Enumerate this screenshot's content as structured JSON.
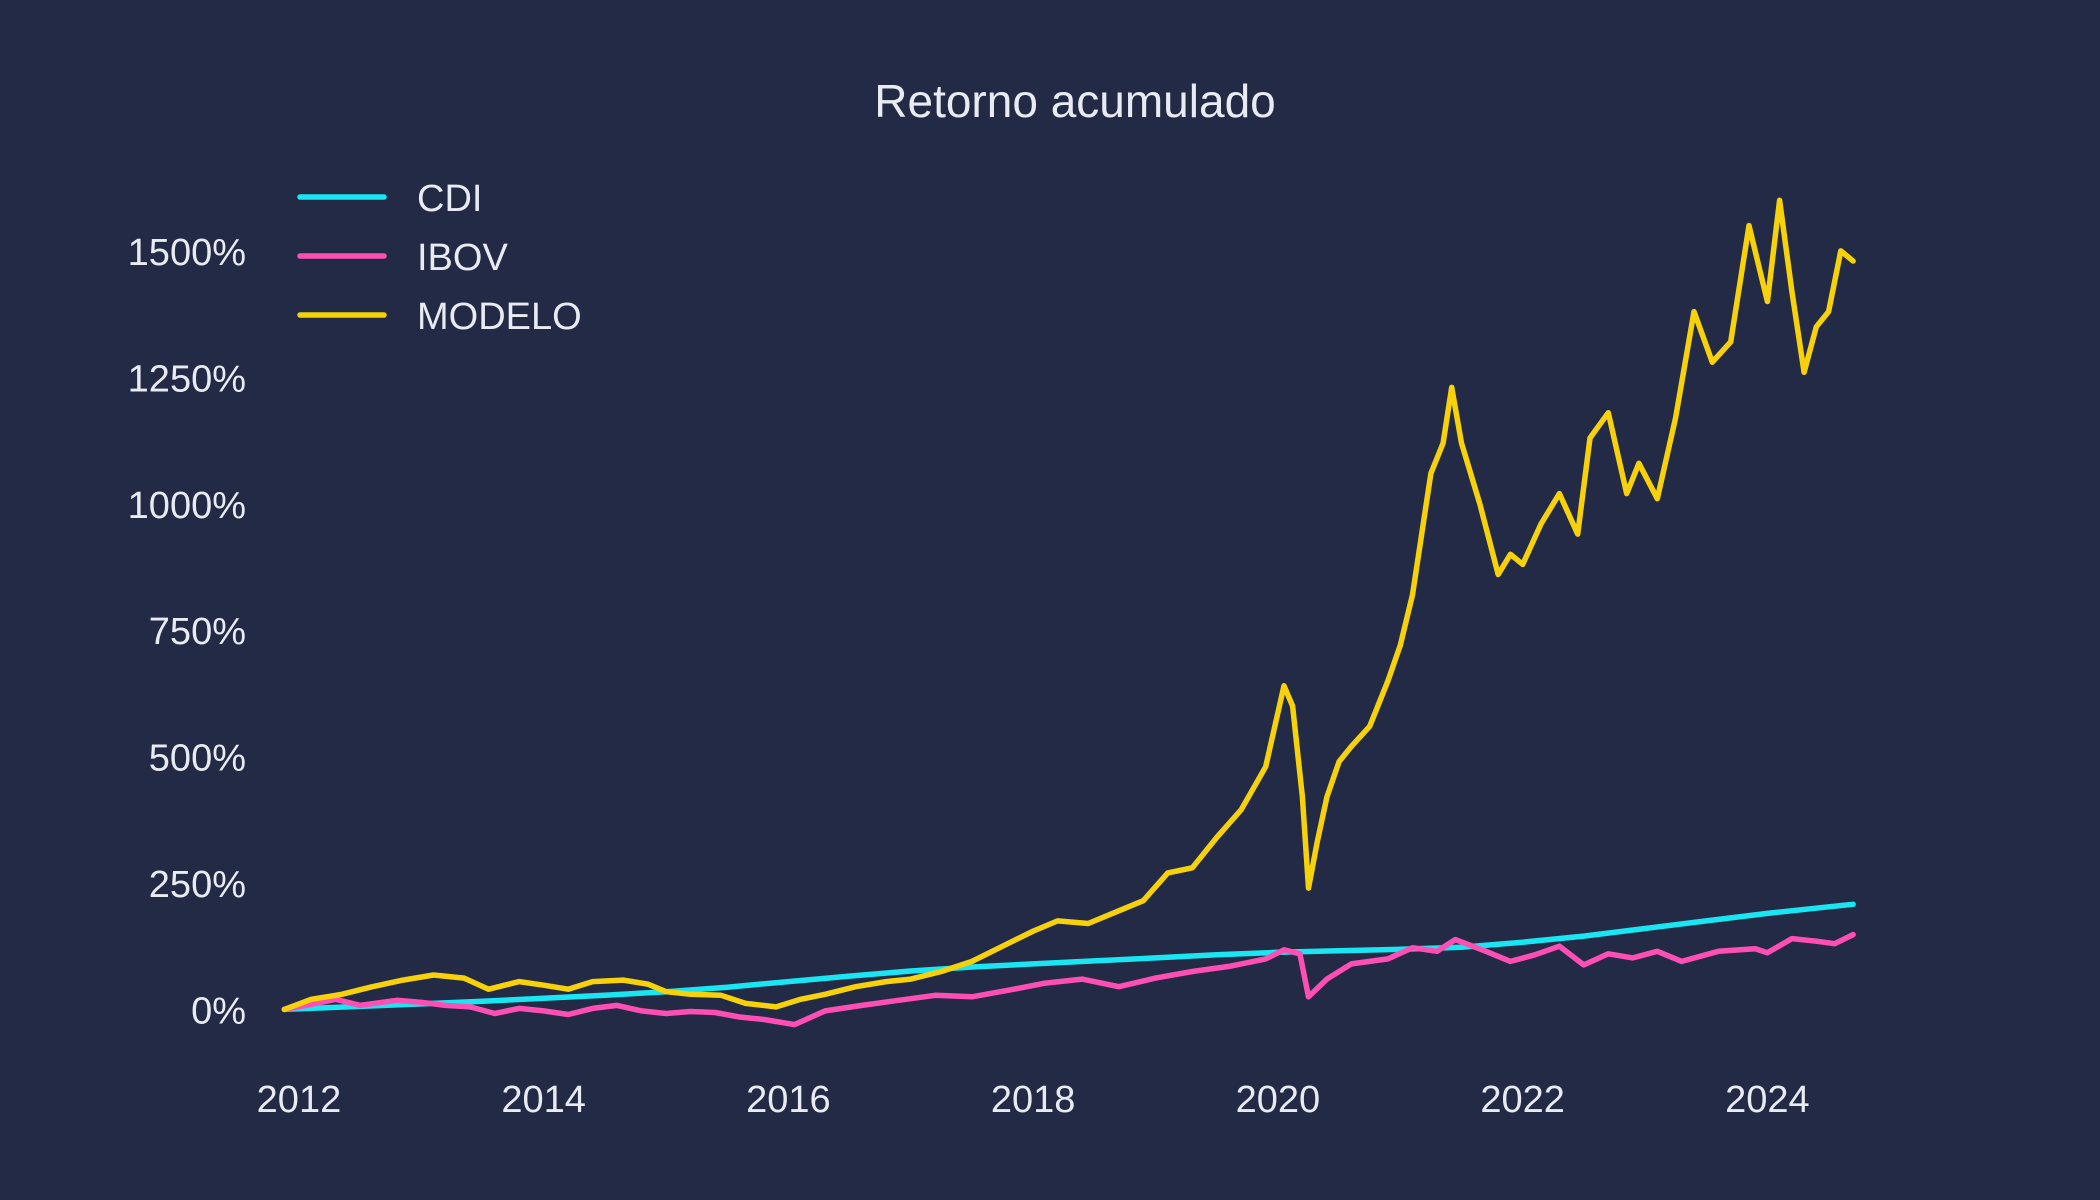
{
  "chart_data": {
    "type": "line",
    "title": "Retorno acumulado",
    "xlabel": "",
    "ylabel": "",
    "grid": false,
    "legend_position": "top-left",
    "xlim": [
      2011.6,
      2025.1
    ],
    "ylim": [
      -100,
      1660
    ],
    "x_ticks": [
      2012,
      2014,
      2016,
      2018,
      2020,
      2022,
      2024
    ],
    "x_tick_labels": [
      "2012",
      "2014",
      "2016",
      "2018",
      "2020",
      "2022",
      "2024"
    ],
    "y_ticks": [
      0,
      250,
      500,
      750,
      1000,
      1250,
      1500
    ],
    "y_tick_labels": [
      "0%",
      "250%",
      "500%",
      "750%",
      "1000%",
      "1250%",
      "1500%"
    ],
    "series": [
      {
        "name": "CDI",
        "color": "#19e6f2",
        "x": [
          2011.88,
          2012.5,
          2013.0,
          2013.5,
          2014.0,
          2014.5,
          2015.0,
          2015.5,
          2016.0,
          2016.5,
          2017.0,
          2017.5,
          2018.0,
          2018.5,
          2019.0,
          2019.5,
          2020.0,
          2020.5,
          2021.0,
          2021.5,
          2022.0,
          2022.5,
          2023.0,
          2023.5,
          2024.0,
          2024.5,
          2024.7
        ],
        "y": [
          0,
          6,
          11,
          16,
          22,
          28,
          35,
          44,
          55,
          66,
          76,
          84,
          90,
          96,
          102,
          108,
          113,
          116,
          119,
          123,
          133,
          145,
          160,
          175,
          190,
          203,
          208
        ]
      },
      {
        "name": "IBOV",
        "color": "#ff4fb5",
        "x": [
          2011.88,
          2012.1,
          2012.3,
          2012.5,
          2012.8,
          2013.0,
          2013.2,
          2013.4,
          2013.6,
          2013.8,
          2014.0,
          2014.2,
          2014.4,
          2014.6,
          2014.8,
          2015.0,
          2015.2,
          2015.4,
          2015.6,
          2015.8,
          2016.05,
          2016.3,
          2016.6,
          2016.9,
          2017.2,
          2017.5,
          2017.8,
          2018.1,
          2018.4,
          2018.7,
          2019.0,
          2019.3,
          2019.6,
          2019.9,
          2020.05,
          2020.18,
          2020.25,
          2020.4,
          2020.6,
          2020.9,
          2021.1,
          2021.3,
          2021.45,
          2021.7,
          2021.9,
          2022.1,
          2022.3,
          2022.5,
          2022.7,
          2022.9,
          2023.1,
          2023.3,
          2023.6,
          2023.9,
          2024.0,
          2024.2,
          2024.4,
          2024.55,
          2024.7
        ],
        "y": [
          0,
          10,
          20,
          8,
          18,
          14,
          8,
          5,
          -8,
          2,
          -3,
          -10,
          2,
          8,
          -3,
          -8,
          -4,
          -6,
          -15,
          -20,
          -30,
          -3,
          8,
          18,
          28,
          25,
          38,
          52,
          60,
          45,
          62,
          75,
          85,
          100,
          118,
          110,
          25,
          60,
          90,
          100,
          122,
          115,
          138,
          115,
          95,
          108,
          125,
          88,
          110,
          102,
          115,
          95,
          115,
          120,
          112,
          140,
          135,
          130,
          148
        ]
      },
      {
        "name": "MODELO",
        "color": "#f7d10a",
        "x": [
          2011.88,
          2012.1,
          2012.35,
          2012.6,
          2012.85,
          2013.1,
          2013.35,
          2013.55,
          2013.8,
          2014.0,
          2014.2,
          2014.4,
          2014.65,
          2014.85,
          2015.0,
          2015.2,
          2015.45,
          2015.65,
          2015.9,
          2016.1,
          2016.3,
          2016.55,
          2016.8,
          2017.0,
          2017.25,
          2017.5,
          2017.75,
          2018.0,
          2018.2,
          2018.45,
          2018.7,
          2018.9,
          2019.1,
          2019.3,
          2019.5,
          2019.7,
          2019.9,
          2020.05,
          2020.12,
          2020.2,
          2020.25,
          2020.32,
          2020.4,
          2020.5,
          2020.6,
          2020.75,
          2020.9,
          2021.0,
          2021.1,
          2021.25,
          2021.35,
          2021.42,
          2021.5,
          2021.65,
          2021.8,
          2021.9,
          2022.0,
          2022.15,
          2022.3,
          2022.45,
          2022.55,
          2022.7,
          2022.85,
          2022.95,
          2023.1,
          2023.25,
          2023.4,
          2023.55,
          2023.7,
          2023.85,
          2024.0,
          2024.1,
          2024.2,
          2024.3,
          2024.4,
          2024.5,
          2024.6,
          2024.7
        ],
        "y": [
          0,
          20,
          30,
          45,
          58,
          68,
          62,
          40,
          55,
          48,
          40,
          55,
          58,
          50,
          35,
          30,
          28,
          12,
          5,
          20,
          30,
          45,
          55,
          60,
          75,
          95,
          125,
          155,
          175,
          170,
          195,
          215,
          270,
          280,
          340,
          395,
          480,
          640,
          600,
          420,
          240,
          330,
          420,
          490,
          520,
          560,
          650,
          720,
          820,
          1060,
          1120,
          1230,
          1120,
          1000,
          860,
          900,
          880,
          960,
          1020,
          940,
          1130,
          1180,
          1020,
          1080,
          1010,
          1170,
          1380,
          1280,
          1320,
          1550,
          1400,
          1600,
          1420,
          1260,
          1350,
          1380,
          1500,
          1480
        ]
      }
    ]
  }
}
